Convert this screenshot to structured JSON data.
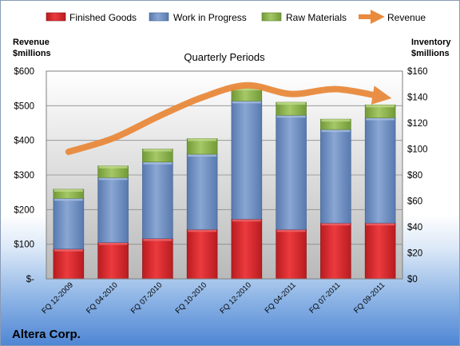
{
  "chart_data": {
    "type": "bar",
    "stacked": true,
    "subtitle": "Quarterly Periods",
    "company": "Altera Corp.",
    "left_axis": {
      "label_line1": "Revenue",
      "label_line2": "$millions",
      "ylim": [
        0,
        600
      ],
      "ticks": [
        0,
        100,
        200,
        300,
        400,
        500,
        600
      ],
      "tick_labels": [
        "$-",
        "$100",
        "$200",
        "$300",
        "$400",
        "$500",
        "$600"
      ]
    },
    "right_axis": {
      "label_line1": "Inventory",
      "label_line2": "$millions",
      "ylim": [
        0,
        160
      ],
      "ticks": [
        0,
        20,
        40,
        60,
        80,
        100,
        120,
        140,
        160
      ],
      "tick_labels": [
        "$0",
        "$20",
        "$40",
        "$60",
        "$80",
        "$100",
        "$120",
        "$140",
        "$160"
      ]
    },
    "categories": [
      "FQ 12-2009",
      "FQ 04-2010",
      "FQ 07-2010",
      "FQ 10-2010",
      "FQ 12-2010",
      "FQ 04-2011",
      "FQ 07-2011",
      "FQ 09-2011"
    ],
    "series": [
      {
        "name": "Finished Goods",
        "axis": "right",
        "color": "#d9262b",
        "values": [
          23,
          28,
          31,
          38,
          46,
          38,
          43,
          43
        ]
      },
      {
        "name": "Work in Progress",
        "axis": "right",
        "color": "#6f8fc4",
        "values": [
          39,
          50,
          59,
          58,
          91,
          88,
          72,
          81
        ]
      },
      {
        "name": "Raw Materials",
        "axis": "right",
        "color": "#8db54b",
        "values": [
          7,
          9,
          10,
          12,
          10,
          10,
          8,
          10
        ]
      }
    ],
    "line_series": {
      "name": "Revenue",
      "axis": "left",
      "color": "#e98a3c",
      "values": [
        367,
        406,
        468,
        524,
        559,
        534,
        548,
        527
      ]
    },
    "grid": true,
    "legend_position": "top"
  }
}
